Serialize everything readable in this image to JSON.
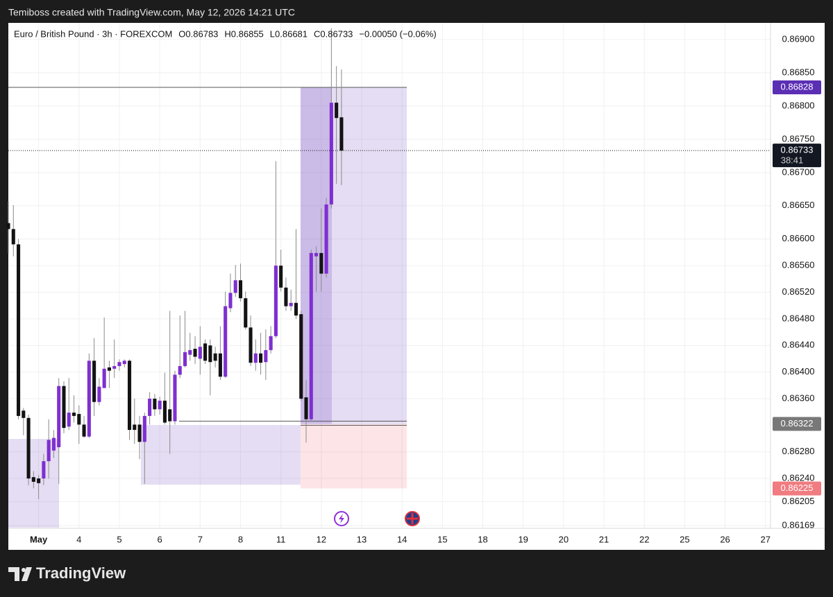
{
  "header": "Temiboss created with TradingView.com, May 12, 2026 14:21 UTC",
  "footer": "TradingView",
  "chart_data": {
    "type": "candlestick",
    "legend": {
      "symbol": "Euro / British Pound · 3h · FOREXCOM",
      "open": "O0.86783",
      "high": "H0.86855",
      "low": "L0.86681",
      "close": "C0.86733",
      "change": "−0.00050 (−0.06%)"
    },
    "up_color": "#7e2fd0",
    "down_color": "#131313",
    "wick_color": "#8a8a8a",
    "grid": true,
    "ylim": [
      0.86165,
      0.86925
    ],
    "yticks": [
      {
        "value": 0.869,
        "label": "0.86900"
      },
      {
        "value": 0.8685,
        "label": "0.86850"
      },
      {
        "value": 0.868,
        "label": "0.86800"
      },
      {
        "value": 0.8675,
        "label": "0.86750"
      },
      {
        "value": 0.867,
        "label": "0.86700"
      },
      {
        "value": 0.8665,
        "label": "0.86650"
      },
      {
        "value": 0.866,
        "label": "0.86600"
      },
      {
        "value": 0.8656,
        "label": "0.86560"
      },
      {
        "value": 0.8652,
        "label": "0.86520"
      },
      {
        "value": 0.8648,
        "label": "0.86480"
      },
      {
        "value": 0.8644,
        "label": "0.86440"
      },
      {
        "value": 0.864,
        "label": "0.86400"
      },
      {
        "value": 0.8636,
        "label": "0.86360"
      },
      {
        "value": 0.8628,
        "label": "0.86280"
      },
      {
        "value": 0.8624,
        "label": "0.86240"
      },
      0.86205,
      0.86169
    ],
    "xlim": [
      0,
      151
    ],
    "xticks": [
      {
        "value": 6,
        "label": "May"
      },
      {
        "value": 14,
        "label": "4"
      },
      {
        "value": 22,
        "label": "5"
      },
      {
        "value": 30,
        "label": "6"
      },
      {
        "value": 38,
        "label": "7"
      },
      {
        "value": 46,
        "label": "8"
      },
      {
        "value": 54,
        "label": "11"
      },
      {
        "value": 62,
        "label": "12"
      },
      {
        "value": 70,
        "label": "13"
      },
      {
        "value": 78,
        "label": "14"
      },
      {
        "value": 86,
        "label": "15"
      },
      {
        "value": 94,
        "label": "18"
      },
      {
        "value": 102,
        "label": "19"
      },
      {
        "value": 110,
        "label": "20"
      },
      {
        "value": 118,
        "label": "21"
      },
      {
        "value": 126,
        "label": "22"
      },
      {
        "value": 134,
        "label": "25"
      },
      {
        "value": 142,
        "label": "26"
      },
      {
        "value": 150,
        "label": "27"
      }
    ],
    "x": [
      0,
      1,
      2,
      3,
      4,
      5,
      6,
      7,
      8,
      9,
      10,
      11,
      12,
      13,
      14,
      15,
      16,
      17,
      18,
      19,
      20,
      21,
      22,
      23,
      24,
      25,
      26,
      27,
      28,
      29,
      30,
      31,
      32,
      33,
      34,
      35,
      36,
      37,
      38,
      39,
      40,
      41,
      42,
      43,
      44,
      45,
      46,
      47,
      48,
      49,
      50,
      51,
      52,
      53,
      54,
      55,
      56,
      57,
      58,
      59,
      60,
      61,
      62,
      63,
      64,
      65,
      66
    ],
    "ohlc": [
      [
        0.86624,
        0.86657,
        0.86579,
        0.86615
      ],
      [
        0.86615,
        0.86651,
        0.86574,
        0.86592
      ],
      [
        0.86592,
        0.866,
        0.86329,
        0.86334
      ],
      [
        0.86342,
        0.86346,
        0.86305,
        0.86331
      ],
      [
        0.86331,
        0.86336,
        0.8623,
        0.8624
      ],
      [
        0.86242,
        0.86251,
        0.86225,
        0.86235
      ],
      [
        0.8624,
        0.86245,
        0.86209,
        0.86233
      ],
      [
        0.8624,
        0.86277,
        0.8623,
        0.86266
      ],
      [
        0.86266,
        0.86329,
        0.8624,
        0.86298
      ],
      [
        0.86282,
        0.86313,
        0.86271,
        0.86301
      ],
      [
        0.86287,
        0.86391,
        0.86232,
        0.86379
      ],
      [
        0.86379,
        0.86386,
        0.86308,
        0.86316
      ],
      [
        0.86318,
        0.86391,
        0.86313,
        0.86339
      ],
      [
        0.86339,
        0.86365,
        0.86324,
        0.86334
      ],
      [
        0.86337,
        0.8635,
        0.86292,
        0.86321
      ],
      [
        0.86321,
        0.86334,
        0.86301,
        0.86303
      ],
      [
        0.86303,
        0.86428,
        0.86301,
        0.86417
      ],
      [
        0.86417,
        0.86451,
        0.86334,
        0.86355
      ],
      [
        0.86355,
        0.86391,
        0.8635,
        0.86378
      ],
      [
        0.86376,
        0.86482,
        0.86376,
        0.86405
      ],
      [
        0.86407,
        0.86417,
        0.86376,
        0.86402
      ],
      [
        0.86405,
        0.86449,
        0.86391,
        0.86409
      ],
      [
        0.86409,
        0.86419,
        0.86402,
        0.86415
      ],
      [
        0.86412,
        0.86419,
        0.86407,
        0.86417
      ],
      [
        0.86417,
        0.86419,
        0.86298,
        0.86313
      ],
      [
        0.86321,
        0.8636,
        0.86292,
        0.86313
      ],
      [
        0.86321,
        0.86334,
        0.86269,
        0.86295
      ],
      [
        0.86295,
        0.86339,
        0.86232,
        0.86334
      ],
      [
        0.86334,
        0.8637,
        0.86321,
        0.8636
      ],
      [
        0.8636,
        0.86367,
        0.86334,
        0.86344
      ],
      [
        0.86344,
        0.86363,
        0.86336,
        0.86357
      ],
      [
        0.86357,
        0.86399,
        0.86321,
        0.86324
      ],
      [
        0.86344,
        0.86492,
        0.86277,
        0.86326
      ],
      [
        0.86326,
        0.86402,
        0.86321,
        0.86396
      ],
      [
        0.86396,
        0.86485,
        0.86391,
        0.86409
      ],
      [
        0.86409,
        0.86492,
        0.86407,
        0.8643
      ],
      [
        0.86426,
        0.86459,
        0.86417,
        0.86433
      ],
      [
        0.86435,
        0.86454,
        0.86412,
        0.86423
      ],
      [
        0.8642,
        0.86469,
        0.86396,
        0.86438
      ],
      [
        0.86443,
        0.86449,
        0.86412,
        0.86417
      ],
      [
        0.8644,
        0.86449,
        0.86365,
        0.86415
      ],
      [
        0.86428,
        0.86438,
        0.86407,
        0.86417
      ],
      [
        0.86428,
        0.86469,
        0.86388,
        0.86393
      ],
      [
        0.86393,
        0.86521,
        0.86391,
        0.86499
      ],
      [
        0.86496,
        0.86548,
        0.8649,
        0.86519
      ],
      [
        0.86519,
        0.86561,
        0.86513,
        0.86538
      ],
      [
        0.86538,
        0.86563,
        0.86506,
        0.86511
      ],
      [
        0.86511,
        0.86521,
        0.86464,
        0.86467
      ],
      [
        0.86467,
        0.86485,
        0.86409,
        0.86414
      ],
      [
        0.86414,
        0.86449,
        0.86402,
        0.86428
      ],
      [
        0.86428,
        0.86459,
        0.86396,
        0.86414
      ],
      [
        0.86415,
        0.86464,
        0.86388,
        0.86433
      ],
      [
        0.86433,
        0.86469,
        0.86428,
        0.86454
      ],
      [
        0.86454,
        0.86717,
        0.86451,
        0.8656
      ],
      [
        0.8656,
        0.86584,
        0.86521,
        0.86527
      ],
      [
        0.86527,
        0.86542,
        0.86492,
        0.86499
      ],
      [
        0.86499,
        0.86524,
        0.86492,
        0.86504
      ],
      [
        0.86504,
        0.86615,
        0.8648,
        0.86485
      ],
      [
        0.86487,
        0.86492,
        0.86357,
        0.8636
      ],
      [
        0.86362,
        0.86388,
        0.86294,
        0.86329
      ],
      [
        0.86329,
        0.86584,
        0.86326,
        0.86579
      ],
      [
        0.86574,
        0.86589,
        0.86521,
        0.86579
      ],
      [
        0.86579,
        0.86646,
        0.86521,
        0.86548
      ],
      [
        0.86548,
        0.86662,
        0.86542,
        0.86652
      ],
      [
        0.86652,
        0.86917,
        0.86646,
        0.86805
      ],
      [
        0.86805,
        0.8686,
        0.86683,
        0.86782
      ],
      [
        0.86783,
        0.86855,
        0.86681,
        0.86733
      ]
    ],
    "price_labels": [
      {
        "value": 0.86828,
        "label": "0.86828",
        "color": "#5b2fb4"
      },
      {
        "value": 0.86733,
        "label": "0.86733",
        "color": "#131722",
        "countdown": "38:41"
      },
      {
        "value": 0.86322,
        "label": "0.86322",
        "color": "#787878"
      },
      {
        "value": 0.86225,
        "label": "0.86225",
        "color": "#f07b80"
      }
    ]
  }
}
